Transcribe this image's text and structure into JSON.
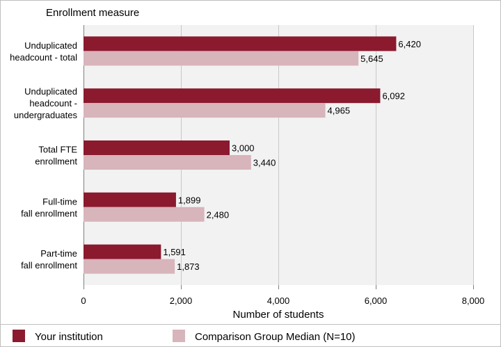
{
  "chart_data": {
    "type": "bar",
    "orientation": "horizontal",
    "title": "Enrollment measure",
    "xlabel": "Number of students",
    "ylabel": "",
    "xlim": [
      0,
      8000
    ],
    "ticks": [
      0,
      2000,
      4000,
      6000,
      8000
    ],
    "tick_labels": [
      "0",
      "2,000",
      "4,000",
      "6,000",
      "8,000"
    ],
    "grid": true,
    "legend_position": "bottom",
    "categories": [
      [
        "Unduplicated",
        "headcount - total"
      ],
      [
        "Unduplicated",
        "headcount -",
        "undergraduates"
      ],
      [
        "Total FTE",
        "enrollment"
      ],
      [
        "Full-time",
        "fall enrollment"
      ],
      [
        "Part-time",
        "fall enrollment"
      ]
    ],
    "series": [
      {
        "name": "Your institution",
        "color": "#8b1a2e",
        "values": [
          6420,
          6092,
          3000,
          1899,
          1591
        ],
        "value_labels": [
          "6,420",
          "6,092",
          "3,000",
          "1,899",
          "1,591"
        ]
      },
      {
        "name": "Comparison Group Median (N=10)",
        "color": "#d8b4bb",
        "values": [
          5645,
          4965,
          3440,
          2480,
          1873
        ],
        "value_labels": [
          "5,645",
          "4,965",
          "3,440",
          "2,480",
          "1,873"
        ]
      }
    ]
  }
}
